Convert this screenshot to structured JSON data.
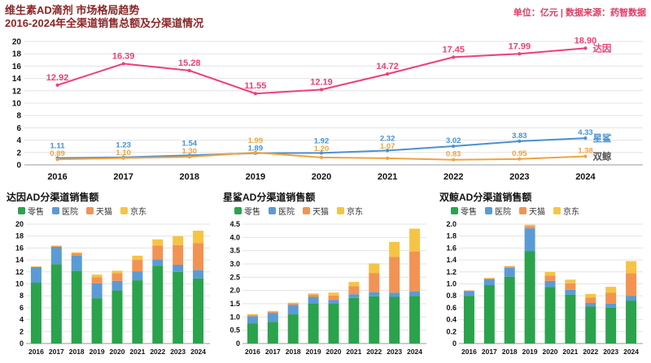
{
  "header": {
    "title_line1": "维生素AD滴剂 市场格局趋势",
    "title_line2": "2016-2024年全渠道销售总额及分渠道情况",
    "unit_source": "单位：亿元 | 数据来源：药智数据"
  },
  "colors": {
    "title_text": "#8c2626",
    "unit_source_text": "#e23a64",
    "axis_text": "#111111",
    "grid_line": "#e3e3e3"
  },
  "chart_data": [
    {
      "type": "line",
      "title": "",
      "x": [
        "2016",
        "2017",
        "2018",
        "2019",
        "2020",
        "2021",
        "2022",
        "2023",
        "2024"
      ],
      "xlabel": "",
      "ylabel": "",
      "ylim": [
        0,
        20
      ],
      "ytick_step": 2,
      "grid": true,
      "legend_position": "line-end-labels",
      "series": [
        {
          "name": "达因",
          "color": "#ee3f78",
          "name_color": "#ee3f78",
          "values": [
            12.92,
            16.39,
            15.28,
            11.55,
            12.19,
            14.72,
            17.45,
            17.99,
            18.9
          ]
        },
        {
          "name": "星鲨",
          "color": "#4a90d2",
          "name_color": "#4a90d2",
          "values": [
            1.11,
            1.23,
            1.54,
            1.89,
            1.92,
            2.32,
            3.02,
            3.83,
            4.33
          ]
        },
        {
          "name": "双鲸",
          "color": "#f0a33f",
          "name_color": "#555555",
          "values": [
            0.89,
            1.1,
            1.3,
            1.99,
            1.2,
            1.07,
            0.83,
            0.95,
            1.38
          ]
        }
      ]
    },
    {
      "type": "bar",
      "title": "达因AD分渠道销售额",
      "stacked": true,
      "categories": [
        "2016",
        "2017",
        "2018",
        "2019",
        "2020",
        "2021",
        "2022",
        "2023",
        "2024"
      ],
      "ylim": [
        0,
        20
      ],
      "ytick_step": 2,
      "grid": true,
      "legend_position": "top",
      "series": [
        {
          "name": "零售",
          "color": "#2aa34c",
          "values": [
            10.2,
            13.3,
            12.2,
            7.6,
            8.9,
            10.6,
            13.0,
            12.0,
            10.9
          ]
        },
        {
          "name": "医院",
          "color": "#5b9bd5",
          "values": [
            2.6,
            2.9,
            2.5,
            2.5,
            1.6,
            1.5,
            1.1,
            1.2,
            1.4
          ]
        },
        {
          "name": "天猫",
          "color": "#f29354",
          "values": [
            0.1,
            0.15,
            0.4,
            1.0,
            1.3,
            1.9,
            2.3,
            3.3,
            4.5
          ]
        },
        {
          "name": "京东",
          "color": "#f6c445",
          "values": [
            0.02,
            0.04,
            0.18,
            0.45,
            0.39,
            0.72,
            1.05,
            1.49,
            2.1
          ]
        }
      ]
    },
    {
      "type": "bar",
      "title": "星鲨AD分渠道销售额",
      "stacked": true,
      "categories": [
        "2016",
        "2017",
        "2018",
        "2019",
        "2020",
        "2021",
        "2022",
        "2023",
        "2024"
      ],
      "ylim": [
        0,
        4.5
      ],
      "ytick_step": 0.5,
      "grid": true,
      "legend_position": "top",
      "series": [
        {
          "name": "零售",
          "color": "#2aa34c",
          "values": [
            0.75,
            0.82,
            1.1,
            1.5,
            1.5,
            1.72,
            1.78,
            1.76,
            1.8
          ]
        },
        {
          "name": "医院",
          "color": "#5b9bd5",
          "values": [
            0.28,
            0.33,
            0.36,
            0.26,
            0.14,
            0.14,
            0.16,
            0.16,
            0.17
          ]
        },
        {
          "name": "天猫",
          "color": "#f29354",
          "values": [
            0.05,
            0.05,
            0.05,
            0.08,
            0.17,
            0.3,
            0.72,
            1.35,
            1.5
          ]
        },
        {
          "name": "京东",
          "color": "#f6c445",
          "values": [
            0.03,
            0.03,
            0.03,
            0.05,
            0.11,
            0.16,
            0.36,
            0.56,
            0.86
          ]
        }
      ]
    },
    {
      "type": "bar",
      "title": "双鲸AD分渠道销售额",
      "stacked": true,
      "categories": [
        "2016",
        "2017",
        "2018",
        "2019",
        "2020",
        "2021",
        "2022",
        "2023",
        "2024"
      ],
      "ylim": [
        0,
        2.0
      ],
      "ytick_step": 0.2,
      "grid": true,
      "legend_position": "top",
      "series": [
        {
          "name": "零售",
          "color": "#2aa34c",
          "values": [
            0.8,
            0.98,
            1.12,
            1.55,
            0.95,
            0.82,
            0.62,
            0.6,
            0.72
          ]
        },
        {
          "name": "医院",
          "color": "#5b9bd5",
          "values": [
            0.08,
            0.1,
            0.15,
            0.38,
            0.1,
            0.08,
            0.06,
            0.07,
            0.08
          ]
        },
        {
          "name": "天猫",
          "color": "#f29354",
          "values": [
            0.01,
            0.01,
            0.02,
            0.04,
            0.09,
            0.11,
            0.09,
            0.18,
            0.38
          ]
        },
        {
          "name": "京东",
          "color": "#f6c445",
          "values": [
            0.0,
            0.01,
            0.01,
            0.02,
            0.06,
            0.06,
            0.06,
            0.1,
            0.2
          ]
        }
      ]
    }
  ]
}
